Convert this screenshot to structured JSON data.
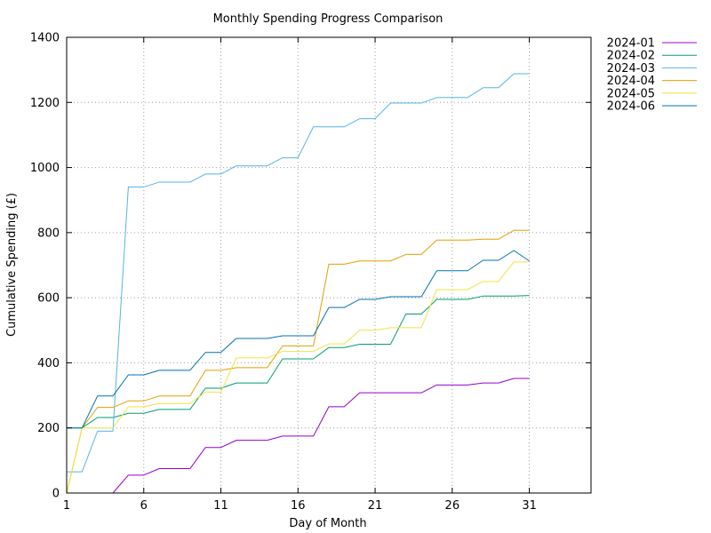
{
  "chart_data": {
    "type": "line",
    "title": "Monthly Spending Progress Comparison",
    "xlabel": "Day of Month",
    "ylabel": "Cumulative Spending (£)",
    "xlim": [
      1,
      35
    ],
    "ylim": [
      0,
      1400
    ],
    "x_ticks": [
      1,
      6,
      11,
      16,
      21,
      26,
      31
    ],
    "y_ticks": [
      0,
      200,
      400,
      600,
      800,
      1000,
      1200,
      1400
    ],
    "grid": true,
    "grid_style": "dotted",
    "legend_position": "outside top-right",
    "series": [
      {
        "name": "2024-01",
        "color": "#9400d3",
        "points": [
          [
            4,
            0
          ],
          [
            5,
            55
          ],
          [
            6,
            55
          ],
          [
            7,
            75
          ],
          [
            8,
            75
          ],
          [
            9,
            75
          ],
          [
            10,
            140
          ],
          [
            11,
            140
          ],
          [
            12,
            162
          ],
          [
            13,
            162
          ],
          [
            14,
            162
          ],
          [
            15,
            175
          ],
          [
            16,
            175
          ],
          [
            17,
            175
          ],
          [
            18,
            265
          ],
          [
            19,
            265
          ],
          [
            20,
            308
          ],
          [
            21,
            308
          ],
          [
            22,
            308
          ],
          [
            23,
            308
          ],
          [
            24,
            308
          ],
          [
            25,
            332
          ],
          [
            26,
            332
          ],
          [
            27,
            332
          ],
          [
            28,
            338
          ],
          [
            29,
            338
          ],
          [
            30,
            352
          ],
          [
            31,
            352
          ]
        ]
      },
      {
        "name": "2024-02",
        "color": "#009e73",
        "points": [
          [
            1,
            200
          ],
          [
            2,
            200
          ],
          [
            3,
            232
          ],
          [
            4,
            232
          ],
          [
            5,
            245
          ],
          [
            6,
            245
          ],
          [
            7,
            257
          ],
          [
            8,
            257
          ],
          [
            9,
            257
          ],
          [
            10,
            322
          ],
          [
            11,
            322
          ],
          [
            12,
            338
          ],
          [
            13,
            338
          ],
          [
            14,
            338
          ],
          [
            15,
            412
          ],
          [
            16,
            412
          ],
          [
            17,
            412
          ],
          [
            18,
            447
          ],
          [
            19,
            447
          ],
          [
            20,
            457
          ],
          [
            21,
            457
          ],
          [
            22,
            457
          ],
          [
            23,
            550
          ],
          [
            24,
            550
          ],
          [
            25,
            595
          ],
          [
            26,
            595
          ],
          [
            27,
            595
          ],
          [
            28,
            605
          ],
          [
            29,
            605
          ],
          [
            30,
            605
          ],
          [
            31,
            607
          ]
        ]
      },
      {
        "name": "2024-03",
        "color": "#56b4e9",
        "points": [
          [
            1,
            65
          ],
          [
            2,
            65
          ],
          [
            3,
            190
          ],
          [
            4,
            190
          ],
          [
            5,
            940
          ],
          [
            6,
            940
          ],
          [
            7,
            955
          ],
          [
            8,
            955
          ],
          [
            9,
            955
          ],
          [
            10,
            980
          ],
          [
            11,
            980
          ],
          [
            12,
            1005
          ],
          [
            13,
            1005
          ],
          [
            14,
            1005
          ],
          [
            15,
            1030
          ],
          [
            16,
            1030
          ],
          [
            17,
            1125
          ],
          [
            18,
            1125
          ],
          [
            19,
            1125
          ],
          [
            20,
            1150
          ],
          [
            21,
            1150
          ],
          [
            22,
            1198
          ],
          [
            23,
            1198
          ],
          [
            24,
            1198
          ],
          [
            25,
            1215
          ],
          [
            26,
            1215
          ],
          [
            27,
            1215
          ],
          [
            28,
            1245
          ],
          [
            29,
            1245
          ],
          [
            30,
            1288
          ],
          [
            31,
            1288
          ]
        ]
      },
      {
        "name": "2024-04",
        "color": "#e69f00",
        "points": [
          [
            1,
            0
          ],
          [
            2,
            200
          ],
          [
            3,
            263
          ],
          [
            4,
            263
          ],
          [
            5,
            283
          ],
          [
            6,
            283
          ],
          [
            7,
            298
          ],
          [
            8,
            298
          ],
          [
            9,
            298
          ],
          [
            10,
            377
          ],
          [
            11,
            377
          ],
          [
            12,
            385
          ],
          [
            13,
            385
          ],
          [
            14,
            385
          ],
          [
            15,
            452
          ],
          [
            16,
            452
          ],
          [
            17,
            452
          ],
          [
            18,
            703
          ],
          [
            19,
            703
          ],
          [
            20,
            713
          ],
          [
            21,
            713
          ],
          [
            22,
            713
          ],
          [
            23,
            733
          ],
          [
            24,
            733
          ],
          [
            25,
            777
          ],
          [
            26,
            777
          ],
          [
            27,
            777
          ],
          [
            28,
            780
          ],
          [
            29,
            780
          ],
          [
            30,
            807
          ],
          [
            31,
            807
          ]
        ]
      },
      {
        "name": "2024-05",
        "color": "#f0e442",
        "points": [
          [
            1,
            0
          ],
          [
            2,
            200
          ],
          [
            3,
            200
          ],
          [
            4,
            200
          ],
          [
            5,
            265
          ],
          [
            6,
            265
          ],
          [
            7,
            275
          ],
          [
            8,
            275
          ],
          [
            9,
            275
          ],
          [
            10,
            310
          ],
          [
            11,
            310
          ],
          [
            12,
            415
          ],
          [
            13,
            415
          ],
          [
            14,
            415
          ],
          [
            15,
            435
          ],
          [
            16,
            435
          ],
          [
            17,
            435
          ],
          [
            18,
            458
          ],
          [
            19,
            458
          ],
          [
            20,
            500
          ],
          [
            21,
            500
          ],
          [
            22,
            508
          ],
          [
            23,
            508
          ],
          [
            24,
            508
          ],
          [
            25,
            625
          ],
          [
            26,
            625
          ],
          [
            27,
            625
          ],
          [
            28,
            650
          ],
          [
            29,
            650
          ],
          [
            30,
            710
          ],
          [
            31,
            710
          ]
        ]
      },
      {
        "name": "2024-06",
        "color": "#0072b2",
        "points": [
          [
            1,
            200
          ],
          [
            2,
            200
          ],
          [
            3,
            298
          ],
          [
            4,
            298
          ],
          [
            5,
            363
          ],
          [
            6,
            363
          ],
          [
            7,
            377
          ],
          [
            8,
            377
          ],
          [
            9,
            377
          ],
          [
            10,
            432
          ],
          [
            11,
            432
          ],
          [
            12,
            475
          ],
          [
            13,
            475
          ],
          [
            14,
            475
          ],
          [
            15,
            483
          ],
          [
            16,
            483
          ],
          [
            17,
            483
          ],
          [
            18,
            570
          ],
          [
            19,
            570
          ],
          [
            20,
            595
          ],
          [
            21,
            595
          ],
          [
            22,
            603
          ],
          [
            23,
            603
          ],
          [
            24,
            603
          ],
          [
            25,
            683
          ],
          [
            26,
            683
          ],
          [
            27,
            683
          ],
          [
            28,
            715
          ],
          [
            29,
            715
          ],
          [
            30,
            745
          ],
          [
            31,
            713
          ]
        ]
      }
    ]
  }
}
